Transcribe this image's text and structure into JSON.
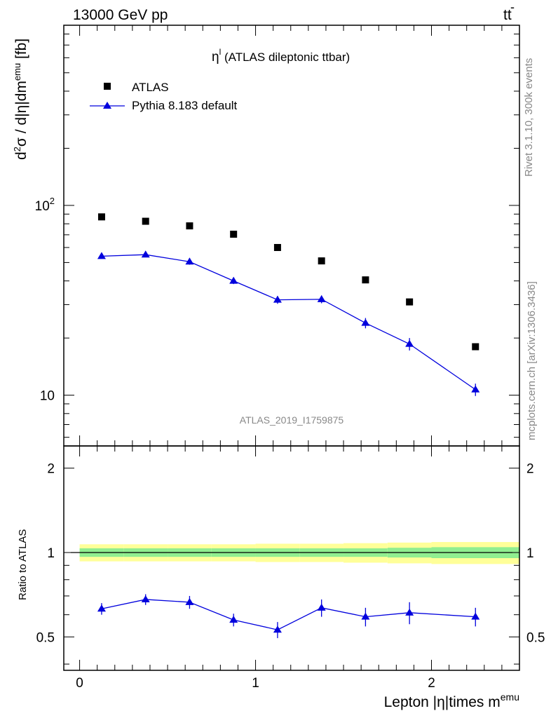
{
  "header": {
    "left": "13000 GeV pp",
    "right_main": "tt",
    "right_bar": "-"
  },
  "side_labels": {
    "rivet": "Rivet 3.1.10,  300k events",
    "mcplots": "mcplots.cern.ch [arXiv:1306.3436]"
  },
  "chart_data": [
    {
      "type": "scatter",
      "panel": "main",
      "title_main": "η",
      "title_sup": "l",
      "title_rest": " (ATLAS dileptonic ttbar)",
      "ylabel": "d²σ / d|η|dm^emu [fb]",
      "ylabel_parts": {
        "d": "d",
        "sup2": "2",
        "mid": "σ / d|η|dm",
        "supemu": "emu",
        "end": " [fb]"
      },
      "watermark": "ATLAS_2019_I1759875",
      "yscale": "log",
      "xlim": [
        -0.09,
        2.5
      ],
      "ylim": [
        5.4,
        890
      ],
      "y_tick_labels": [
        {
          "value": 10,
          "base": "10",
          "exp": ""
        },
        {
          "value": 100,
          "base": "10",
          "exp": "2"
        }
      ],
      "legend_position": "top-left",
      "series": [
        {
          "name": "ATLAS",
          "color": "#000000",
          "marker": "square",
          "x": [
            0.125,
            0.375,
            0.625,
            0.875,
            1.125,
            1.375,
            1.625,
            1.875,
            2.25
          ],
          "y": [
            87,
            82.5,
            78,
            70.5,
            60,
            51,
            40.5,
            31,
            18
          ]
        },
        {
          "name": "Pythia 8.183 default",
          "color": "#0000dd",
          "marker": "triangle",
          "x": [
            0.125,
            0.375,
            0.625,
            0.875,
            1.125,
            1.375,
            1.625,
            1.875,
            2.25
          ],
          "y": [
            54,
            55,
            50.5,
            40,
            31.8,
            32,
            24,
            18.6,
            10.7
          ],
          "y_err": [
            1.6,
            1.7,
            1.8,
            1.5,
            1.5,
            1.5,
            1.5,
            1.4,
            0.8
          ]
        }
      ]
    },
    {
      "type": "line",
      "panel": "ratio",
      "ylabel": "Ratio to ATLAS",
      "xlabel": "Lepton |η|times m^emu",
      "xlabel_parts": {
        "main": "Lepton |η|times m",
        "sup": "emu"
      },
      "xlim": [
        -0.09,
        2.5
      ],
      "ylim": [
        0.38,
        2.4
      ],
      "x_ticks": [
        0,
        1,
        2
      ],
      "y_ticks": [
        0.5,
        1,
        2
      ],
      "y_tick_labels": [
        "0.5",
        "1",
        "2"
      ],
      "reference": 1,
      "band_edges": [
        0,
        0.25,
        0.5,
        0.75,
        1.0,
        1.25,
        1.5,
        1.75,
        2.0,
        2.5
      ],
      "band_inner": [
        0.035,
        0.035,
        0.035,
        0.035,
        0.035,
        0.035,
        0.035,
        0.04,
        0.045
      ],
      "band_outer": [
        0.07,
        0.07,
        0.07,
        0.07,
        0.075,
        0.075,
        0.08,
        0.085,
        0.09
      ],
      "band_colors": {
        "inner": "#90ee90",
        "outer": "#ffff99"
      },
      "series": [
        {
          "name": "Pythia 8.183 default",
          "color": "#0000dd",
          "x": [
            0.125,
            0.375,
            0.625,
            0.875,
            1.125,
            1.375,
            1.625,
            1.875,
            2.25
          ],
          "y": [
            0.63,
            0.68,
            0.665,
            0.575,
            0.53,
            0.635,
            0.59,
            0.61,
            0.59
          ],
          "y_err": [
            0.03,
            0.03,
            0.035,
            0.03,
            0.035,
            0.045,
            0.045,
            0.055,
            0.045
          ]
        }
      ]
    }
  ]
}
